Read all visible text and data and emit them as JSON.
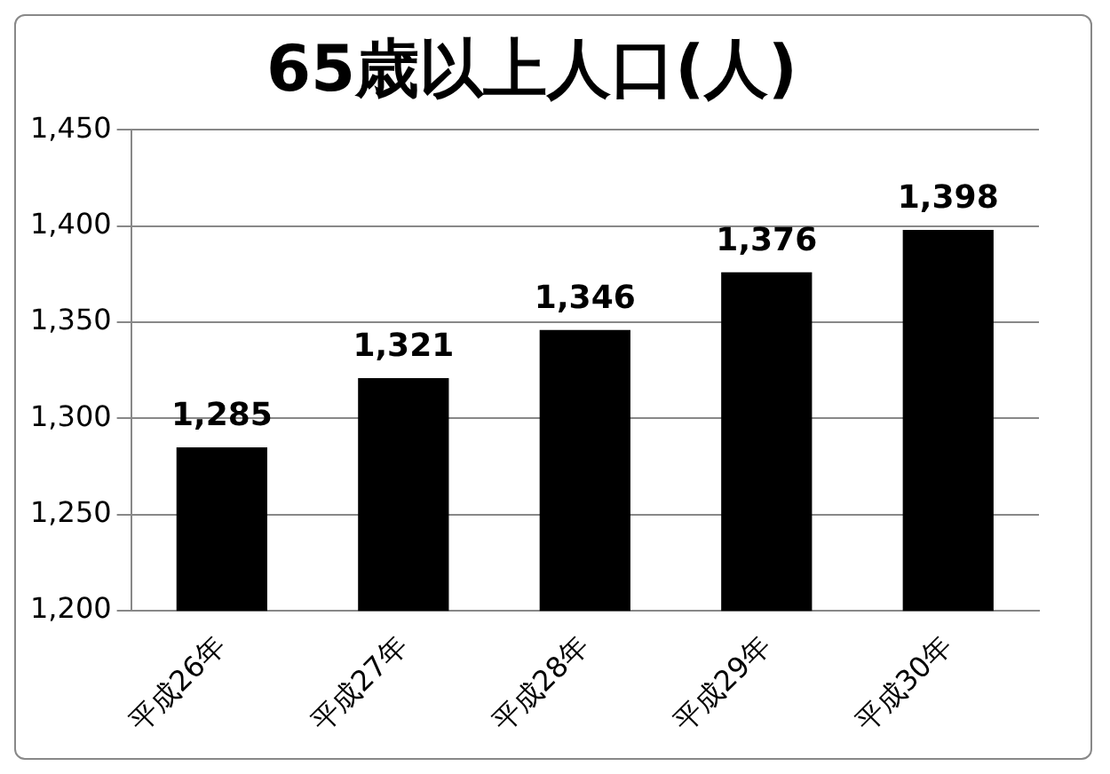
{
  "chart_data": {
    "type": "bar",
    "title": "65歳以上人口(人)",
    "categories": [
      "平成26年",
      "平成27年",
      "平成28年",
      "平成29年",
      "平成30年"
    ],
    "values": [
      1285,
      1321,
      1346,
      1376,
      1398
    ],
    "color": "#000000",
    "value_labels": [
      "1,285",
      "1,321",
      "1,346",
      "1,376",
      "1,398"
    ],
    "ylim": [
      1200,
      1450
    ],
    "yticks": [
      {
        "value": 1200,
        "label": "1,200"
      },
      {
        "value": 1250,
        "label": "1,250"
      },
      {
        "value": 1300,
        "label": "1,300"
      },
      {
        "value": 1350,
        "label": "1,350"
      },
      {
        "value": 1400,
        "label": "1,400"
      },
      {
        "value": 1450,
        "label": "1,450"
      }
    ],
    "grid": "y",
    "legend": false
  }
}
